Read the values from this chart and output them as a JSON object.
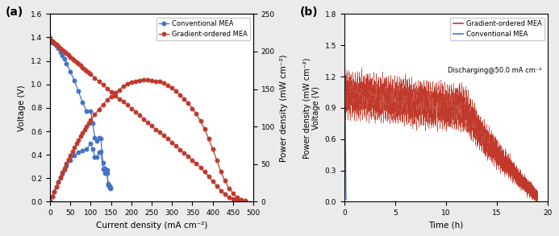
{
  "panel_a": {
    "label": "(a)",
    "xlabel": "Current density (mA cm⁻²)",
    "ylabel_left": "Voltage (V)",
    "ylabel_right": "Power density (mW cm⁻²)",
    "xlim": [
      0,
      500
    ],
    "ylim_left": [
      0,
      1.6
    ],
    "ylim_right": [
      0,
      250
    ],
    "xticks": [
      0,
      50,
      100,
      150,
      200,
      250,
      300,
      350,
      400,
      450,
      500
    ],
    "yticks_left": [
      0.0,
      0.2,
      0.4,
      0.6,
      0.8,
      1.0,
      1.2,
      1.4,
      1.6
    ],
    "yticks_right": [
      0,
      50,
      100,
      150,
      200,
      250
    ],
    "conventional_voltage_x": [
      0,
      5,
      10,
      15,
      20,
      25,
      30,
      35,
      40,
      50,
      60,
      70,
      80,
      90,
      100,
      105,
      110,
      115,
      120,
      125,
      130,
      135,
      140,
      143,
      146,
      148
    ],
    "conventional_voltage_y": [
      1.365,
      1.355,
      1.345,
      1.325,
      1.305,
      1.275,
      1.245,
      1.215,
      1.18,
      1.11,
      1.03,
      0.94,
      0.845,
      0.775,
      0.775,
      0.67,
      0.545,
      0.52,
      0.545,
      0.535,
      0.33,
      0.285,
      0.27,
      0.155,
      0.13,
      0.12
    ],
    "conventional_power_x": [
      0,
      5,
      10,
      15,
      20,
      25,
      30,
      35,
      40,
      50,
      60,
      70,
      80,
      90,
      100,
      105,
      110,
      115,
      120,
      125,
      130,
      135,
      140,
      143,
      146,
      148
    ],
    "conventional_power_y": [
      0,
      6.8,
      13.5,
      19.9,
      26.1,
      31.9,
      37.4,
      42.5,
      47.2,
      55.5,
      61.8,
      65.8,
      67.6,
      69.8,
      77.5,
      70.4,
      59.9,
      59.8,
      65.4,
      66.9,
      42.9,
      38.5,
      37.8,
      22.2,
      19.0,
      17.8
    ],
    "gradient_voltage_x": [
      0,
      5,
      10,
      15,
      20,
      25,
      30,
      35,
      40,
      45,
      50,
      55,
      60,
      65,
      70,
      75,
      80,
      85,
      90,
      95,
      100,
      110,
      120,
      130,
      140,
      150,
      160,
      170,
      180,
      190,
      200,
      210,
      220,
      230,
      240,
      250,
      260,
      270,
      280,
      290,
      300,
      310,
      320,
      330,
      340,
      350,
      360,
      370,
      380,
      390,
      400,
      410,
      420,
      430,
      440,
      450,
      460,
      470,
      480
    ],
    "gradient_voltage_y": [
      1.395,
      1.37,
      1.355,
      1.34,
      1.325,
      1.31,
      1.295,
      1.28,
      1.265,
      1.25,
      1.235,
      1.22,
      1.205,
      1.19,
      1.175,
      1.16,
      1.145,
      1.13,
      1.115,
      1.1,
      1.085,
      1.055,
      1.025,
      0.995,
      0.965,
      0.935,
      0.905,
      0.875,
      0.855,
      0.825,
      0.795,
      0.765,
      0.735,
      0.705,
      0.675,
      0.645,
      0.615,
      0.595,
      0.565,
      0.535,
      0.505,
      0.475,
      0.445,
      0.415,
      0.385,
      0.355,
      0.325,
      0.29,
      0.255,
      0.215,
      0.175,
      0.135,
      0.095,
      0.065,
      0.04,
      0.025,
      0.012,
      0.006,
      0.002
    ],
    "gradient_power_x": [
      0,
      5,
      10,
      15,
      20,
      25,
      30,
      35,
      40,
      45,
      50,
      55,
      60,
      65,
      70,
      75,
      80,
      85,
      90,
      95,
      100,
      110,
      120,
      130,
      140,
      150,
      160,
      170,
      180,
      190,
      200,
      210,
      220,
      230,
      240,
      250,
      260,
      270,
      280,
      290,
      300,
      310,
      320,
      330,
      340,
      350,
      360,
      370,
      380,
      390,
      400,
      410,
      420,
      430,
      440,
      450,
      460,
      470,
      480
    ],
    "gradient_power_y": [
      0,
      6.85,
      13.55,
      20.1,
      26.5,
      32.75,
      38.85,
      44.8,
      50.6,
      56.25,
      61.75,
      67.1,
      72.3,
      77.35,
      82.25,
      87.0,
      91.6,
      96.05,
      100.35,
      104.5,
      108.5,
      116.05,
      123.0,
      129.35,
      135.1,
      140.25,
      144.8,
      148.75,
      153.9,
      156.75,
      159.0,
      160.65,
      161.7,
      162.15,
      162.0,
      161.25,
      159.9,
      160.65,
      158.2,
      155.15,
      151.5,
      147.25,
      142.4,
      137.0,
      131.0,
      124.25,
      117.0,
      107.3,
      96.9,
      83.85,
      70.0,
      55.35,
      39.9,
      27.95,
      17.6,
      11.25,
      5.52,
      2.82,
      0.96
    ],
    "conventional_color": "#4472c4",
    "gradient_color": "#c0392b",
    "legend_conventional": "Conventional MEA",
    "legend_gradient": "Gradient-ordered MEA"
  },
  "panel_b": {
    "label": "(b)",
    "xlabel": "Time (h)",
    "ylabel_line1": "Power density (mW cm⁻²)",
    "ylabel_line2": "Voltage (V)",
    "xlim": [
      0,
      20
    ],
    "ylim": [
      0,
      1.8
    ],
    "xticks": [
      0,
      5,
      10,
      15,
      20
    ],
    "yticks": [
      0.0,
      0.3,
      0.6,
      0.9,
      1.2,
      1.5,
      1.8
    ],
    "gradient_color": "#c0392b",
    "conventional_color": "#4472c4",
    "legend_gradient": "Gradient-ordered MEA",
    "legend_conventional": "Conventional MEA",
    "annotation": "Discharging@50.0 mA cm⁻²"
  },
  "figure_bg": "#ebebeb"
}
